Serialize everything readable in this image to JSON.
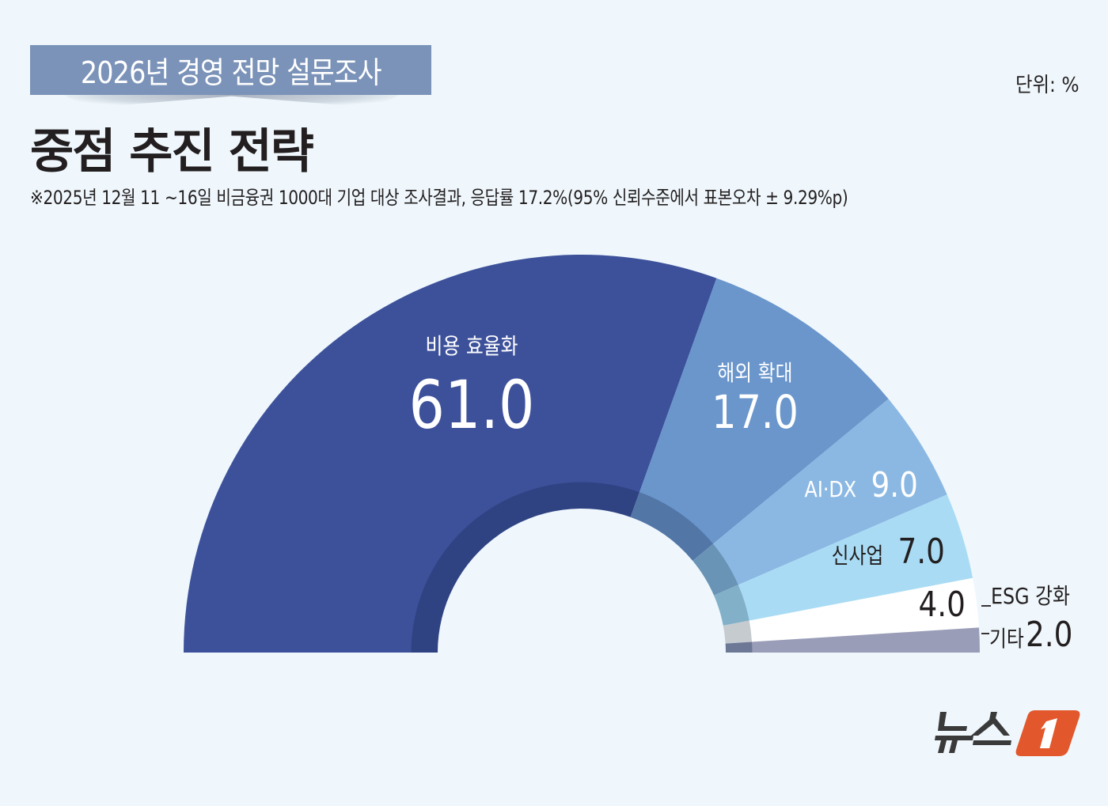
{
  "header": {
    "band_text": "2026년 경영 전망 설문조사",
    "title": "중점 추진 전략",
    "unit": "단위: %",
    "note": "※2025년 12월 11 ~16일 비금융권 1000대 기업 대상 조사결과, 응답률 17.2%(95% 신뢰수준에서 표본오차 ± 9.29%p)"
  },
  "colors": {
    "background": "#eff7fc",
    "band": "#7b93b8",
    "logo_orange": "#e2572b",
    "logo_dark": "#3a3a3a"
  },
  "chart_data": {
    "type": "pie",
    "subtype": "semicircle-donut",
    "title": "중점 추진 전략",
    "unit": "%",
    "categories": [
      "비용 효율화",
      "해외 확대",
      "AI·DX",
      "신사업",
      "ESG 강화",
      "기타"
    ],
    "values": [
      61.0,
      17.0,
      9.0,
      7.0,
      4.0,
      2.0
    ],
    "value_labels": [
      "61.0",
      "17.0",
      "9.0",
      "7.0",
      "4.0",
      "2.0"
    ],
    "slice_colors": [
      "#3d519b",
      "#6a96cc",
      "#8bb8e2",
      "#a9dcf4",
      "#ffffff",
      "#9a9db8"
    ],
    "inner_band_colors": [
      "#2f4383",
      "#5276a6",
      "#6a94b6",
      "#82b0c8",
      "#c6cbd0",
      "#6d7896"
    ],
    "legend": false
  },
  "logo": {
    "text": "뉴스",
    "mark": "1"
  }
}
